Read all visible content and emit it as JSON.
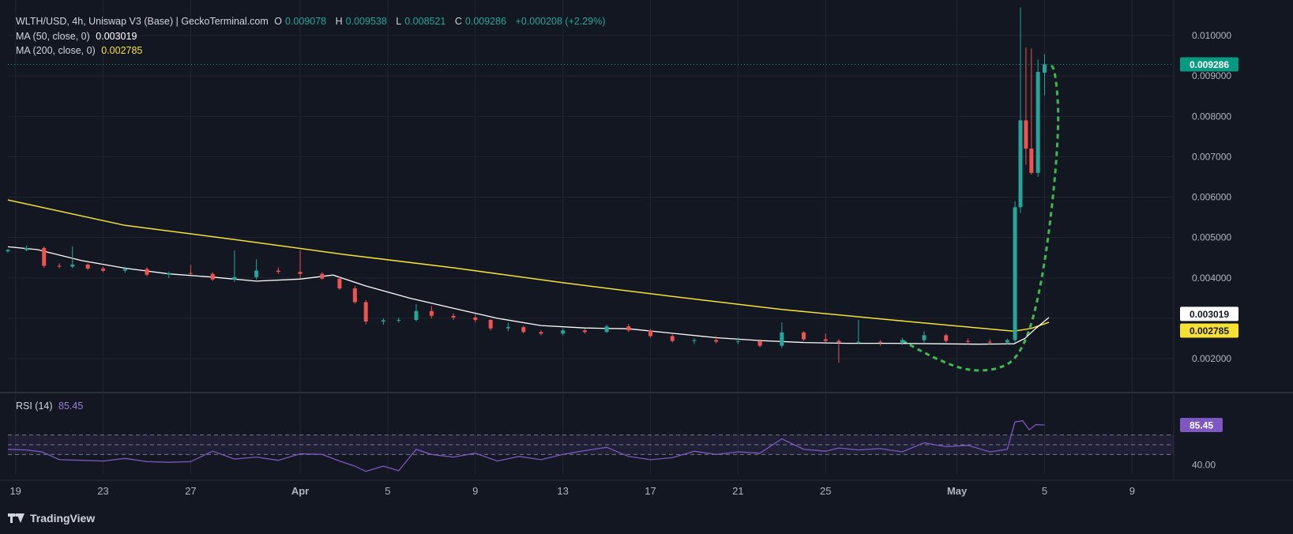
{
  "header": {
    "symbol_line": "WLTH/USD, 4h, Uniswap V3 (Base) | GeckoTerminal.com",
    "o_label": "O",
    "o_value": "0.009078",
    "h_label": "H",
    "h_value": "0.009538",
    "l_label": "L",
    "l_value": "0.008521",
    "c_label": "C",
    "c_value": "0.009286",
    "change": "+0.000208 (+2.29%)",
    "ma50_label": "MA (50, close, 0)",
    "ma50_value": "0.003019",
    "ma200_label": "MA (200, close, 0)",
    "ma200_value": "0.002785"
  },
  "rsi_panel": {
    "label": "RSI (14)",
    "value": "85.45",
    "level_label": "40.00"
  },
  "brand": "TradingView",
  "colors": {
    "up": "#26a69a",
    "down": "#ef5350",
    "ma50": "#ffffff",
    "ma200": "#f7e034",
    "rsi": "#7e57c2",
    "annotation": "#3fb94f",
    "price_tag": "#089981"
  },
  "chart_data": {
    "type": "candlestick",
    "timeframe": "4h",
    "price_axis": {
      "ticks": [
        0.002,
        0.003,
        0.004,
        0.005,
        0.006,
        0.007,
        0.008,
        0.009,
        0.01
      ],
      "tick_labels": [
        "0.002000",
        "",
        "0.004000",
        "0.005000",
        "0.006000",
        "0.007000",
        "0.008000",
        "0.009000",
        "0.010000"
      ],
      "range": [
        0.00118,
        0.01088
      ]
    },
    "time_axis": {
      "labels": [
        "19",
        "23",
        "27",
        "Apr",
        "5",
        "9",
        "13",
        "17",
        "21",
        "25",
        "May",
        "5",
        "9"
      ],
      "label_days": [
        0,
        4,
        8,
        13,
        17,
        21,
        25,
        29,
        33,
        37,
        43,
        47,
        51
      ],
      "range_days": [
        -0.35,
        52.9
      ]
    },
    "last_price": {
      "value": 0.009286,
      "label": "0.009286"
    },
    "ma50_tag": {
      "value": 0.003019,
      "label": "0.003019"
    },
    "ma200_tag": {
      "value": 0.002785,
      "label": "0.002785"
    },
    "ma200_points": [
      [
        -0.35,
        0.00593
      ],
      [
        5,
        0.0053
      ],
      [
        10,
        0.00495
      ],
      [
        15,
        0.00458
      ],
      [
        20,
        0.00425
      ],
      [
        25,
        0.00388
      ],
      [
        30,
        0.00354
      ],
      [
        35,
        0.00322
      ],
      [
        40,
        0.00296
      ],
      [
        44,
        0.00276
      ],
      [
        45.6,
        0.00268
      ],
      [
        46.4,
        0.00275
      ],
      [
        47.2,
        0.0029
      ]
    ],
    "ma50_points": [
      [
        -0.35,
        0.00477
      ],
      [
        1,
        0.0047
      ],
      [
        3,
        0.00443
      ],
      [
        5,
        0.00424
      ],
      [
        7,
        0.0041
      ],
      [
        9,
        0.00402
      ],
      [
        11,
        0.00392
      ],
      [
        13,
        0.00397
      ],
      [
        14.5,
        0.00407
      ],
      [
        16,
        0.0038
      ],
      [
        18,
        0.0035
      ],
      [
        20,
        0.00325
      ],
      [
        22,
        0.003
      ],
      [
        24,
        0.00282
      ],
      [
        26,
        0.00276
      ],
      [
        28,
        0.00274
      ],
      [
        30,
        0.00263
      ],
      [
        32,
        0.00252
      ],
      [
        34,
        0.00245
      ],
      [
        36,
        0.0024
      ],
      [
        38,
        0.00238
      ],
      [
        40,
        0.00238
      ],
      [
        42,
        0.00237
      ],
      [
        44,
        0.00236
      ],
      [
        45.6,
        0.00237
      ],
      [
        46.1,
        0.0025
      ],
      [
        46.6,
        0.00275
      ],
      [
        47.2,
        0.00302
      ]
    ],
    "candles_series": [
      [
        -0.35,
        0.00466,
        0.00472,
        0.00462,
        0.00469
      ],
      [
        0.5,
        0.00469,
        0.0048,
        0.00466,
        0.00474
      ],
      [
        1.3,
        0.00474,
        0.00478,
        0.00425,
        0.0043
      ],
      [
        2,
        0.0043,
        0.00436,
        0.00424,
        0.00428
      ],
      [
        2.6,
        0.00428,
        0.00478,
        0.00424,
        0.00433
      ],
      [
        3.3,
        0.00433,
        0.00436,
        0.0042,
        0.00423
      ],
      [
        4,
        0.00423,
        0.00428,
        0.00414,
        0.00418
      ],
      [
        5,
        0.00418,
        0.00428,
        0.00412,
        0.00422
      ],
      [
        6,
        0.00422,
        0.00426,
        0.00404,
        0.00408
      ],
      [
        7,
        0.00408,
        0.00416,
        0.004,
        0.00412
      ],
      [
        8,
        0.00412,
        0.00432,
        0.00408,
        0.0041
      ],
      [
        9,
        0.0041,
        0.00414,
        0.00392,
        0.00396
      ],
      [
        10,
        0.00396,
        0.00468,
        0.0039,
        0.00402
      ],
      [
        11,
        0.00402,
        0.00446,
        0.00396,
        0.00418
      ],
      [
        12,
        0.00418,
        0.00426,
        0.0041,
        0.00415
      ],
      [
        13,
        0.00415,
        0.00468,
        0.00398,
        0.0041
      ],
      [
        14,
        0.0041,
        0.00414,
        0.00396,
        0.00398
      ],
      [
        14.8,
        0.00398,
        0.00402,
        0.0037,
        0.00374
      ],
      [
        15.5,
        0.00374,
        0.0038,
        0.00336,
        0.0034
      ],
      [
        16,
        0.0034,
        0.00345,
        0.00285,
        0.00292
      ],
      [
        16.8,
        0.00292,
        0.003,
        0.00284,
        0.00295
      ],
      [
        17.5,
        0.00295,
        0.00302,
        0.00289,
        0.00296
      ],
      [
        18.3,
        0.00296,
        0.00335,
        0.00292,
        0.00318
      ],
      [
        19,
        0.00318,
        0.0033,
        0.003,
        0.00306
      ],
      [
        20,
        0.00306,
        0.00312,
        0.00296,
        0.00302
      ],
      [
        21,
        0.00302,
        0.0031,
        0.0029,
        0.00296
      ],
      [
        21.7,
        0.00296,
        0.00298,
        0.0027,
        0.00275
      ],
      [
        22.5,
        0.00275,
        0.0029,
        0.00268,
        0.00278
      ],
      [
        23.2,
        0.00278,
        0.00282,
        0.00262,
        0.00266
      ],
      [
        24,
        0.00266,
        0.0027,
        0.00258,
        0.00262
      ],
      [
        25,
        0.00262,
        0.00275,
        0.00258,
        0.0027
      ],
      [
        26,
        0.0027,
        0.00274,
        0.00262,
        0.00266
      ],
      [
        27,
        0.00266,
        0.00284,
        0.00264,
        0.0028
      ],
      [
        28,
        0.0028,
        0.00286,
        0.00266,
        0.0027
      ],
      [
        29,
        0.0027,
        0.00274,
        0.00252,
        0.00256
      ],
      [
        30,
        0.00256,
        0.0026,
        0.0024,
        0.00244
      ],
      [
        31,
        0.00244,
        0.0025,
        0.00236,
        0.00246
      ],
      [
        32,
        0.00246,
        0.00256,
        0.00238,
        0.00242
      ],
      [
        33,
        0.00242,
        0.00252,
        0.00236,
        0.00244
      ],
      [
        34,
        0.00244,
        0.00248,
        0.00228,
        0.00232
      ],
      [
        35,
        0.00232,
        0.0029,
        0.00226,
        0.00265
      ],
      [
        36,
        0.00265,
        0.00268,
        0.00244,
        0.00248
      ],
      [
        37,
        0.00248,
        0.00262,
        0.0024,
        0.00244
      ],
      [
        37.6,
        0.00244,
        0.00248,
        0.0019,
        0.0024
      ],
      [
        38.5,
        0.0024,
        0.00296,
        0.00236,
        0.00242
      ],
      [
        39.5,
        0.00242,
        0.00246,
        0.00232,
        0.0024
      ],
      [
        40.5,
        0.0024,
        0.00252,
        0.00234,
        0.00246
      ],
      [
        41.5,
        0.00246,
        0.00268,
        0.0024,
        0.00258
      ],
      [
        42.5,
        0.00258,
        0.00262,
        0.0024,
        0.00244
      ],
      [
        43.5,
        0.00244,
        0.0025,
        0.00236,
        0.00242
      ],
      [
        44.5,
        0.00242,
        0.00248,
        0.00236,
        0.0024
      ],
      [
        45.3,
        0.0024,
        0.0025,
        0.00236,
        0.00246
      ],
      [
        45.65,
        0.00246,
        0.0059,
        0.0024,
        0.00575
      ],
      [
        45.9,
        0.00575,
        0.0107,
        0.0056,
        0.0079
      ],
      [
        46.15,
        0.0079,
        0.0097,
        0.0068,
        0.0072
      ],
      [
        46.4,
        0.0072,
        0.00968,
        0.00656,
        0.0066
      ],
      [
        46.7,
        0.0066,
        0.0094,
        0.0065,
        0.0091
      ],
      [
        47.0,
        0.00908,
        0.00954,
        0.00852,
        0.00929
      ]
    ],
    "rsi": {
      "range": [
        10,
        100
      ],
      "bands": [
        70,
        55,
        40
      ],
      "current": 85.45,
      "points": [
        [
          -0.35,
          48
        ],
        [
          0.5,
          47
        ],
        [
          1.2,
          44
        ],
        [
          2,
          32
        ],
        [
          3,
          31
        ],
        [
          4,
          30
        ],
        [
          5,
          34
        ],
        [
          6,
          29
        ],
        [
          7,
          28
        ],
        [
          8,
          29
        ],
        [
          9,
          45
        ],
        [
          10,
          33
        ],
        [
          11,
          36
        ],
        [
          12,
          31
        ],
        [
          13,
          41
        ],
        [
          14,
          40
        ],
        [
          14.8,
          30
        ],
        [
          15.5,
          22
        ],
        [
          16,
          14
        ],
        [
          16.8,
          22
        ],
        [
          17.5,
          15
        ],
        [
          18.3,
          48
        ],
        [
          19,
          40
        ],
        [
          20,
          36
        ],
        [
          21,
          42
        ],
        [
          22,
          30
        ],
        [
          23,
          37
        ],
        [
          24,
          32
        ],
        [
          25,
          40
        ],
        [
          26,
          46
        ],
        [
          27,
          51
        ],
        [
          28,
          37
        ],
        [
          29,
          32
        ],
        [
          30,
          35
        ],
        [
          31,
          45
        ],
        [
          32,
          40
        ],
        [
          33,
          44
        ],
        [
          34,
          42
        ],
        [
          35,
          64
        ],
        [
          36,
          48
        ],
        [
          37,
          45
        ],
        [
          37.6,
          50
        ],
        [
          38.5,
          47
        ],
        [
          39.5,
          49
        ],
        [
          40.5,
          44
        ],
        [
          41.5,
          58
        ],
        [
          42.5,
          52
        ],
        [
          43.5,
          54
        ],
        [
          44.5,
          44
        ],
        [
          45.3,
          48
        ],
        [
          45.65,
          90
        ],
        [
          46.0,
          92
        ],
        [
          46.3,
          78
        ],
        [
          46.6,
          86
        ],
        [
          47.0,
          85.45
        ]
      ]
    },
    "annotation": {
      "type": "dashed-curve",
      "points": [
        [
          40.5,
          0.00245
        ],
        [
          42.5,
          0.00182
        ],
        [
          44.5,
          0.00165
        ],
        [
          46.0,
          0.00205
        ],
        [
          47.0,
          0.0041
        ],
        [
          47.7,
          0.0076
        ],
        [
          47.5,
          0.0092
        ],
        [
          47.15,
          0.00929
        ]
      ]
    }
  }
}
